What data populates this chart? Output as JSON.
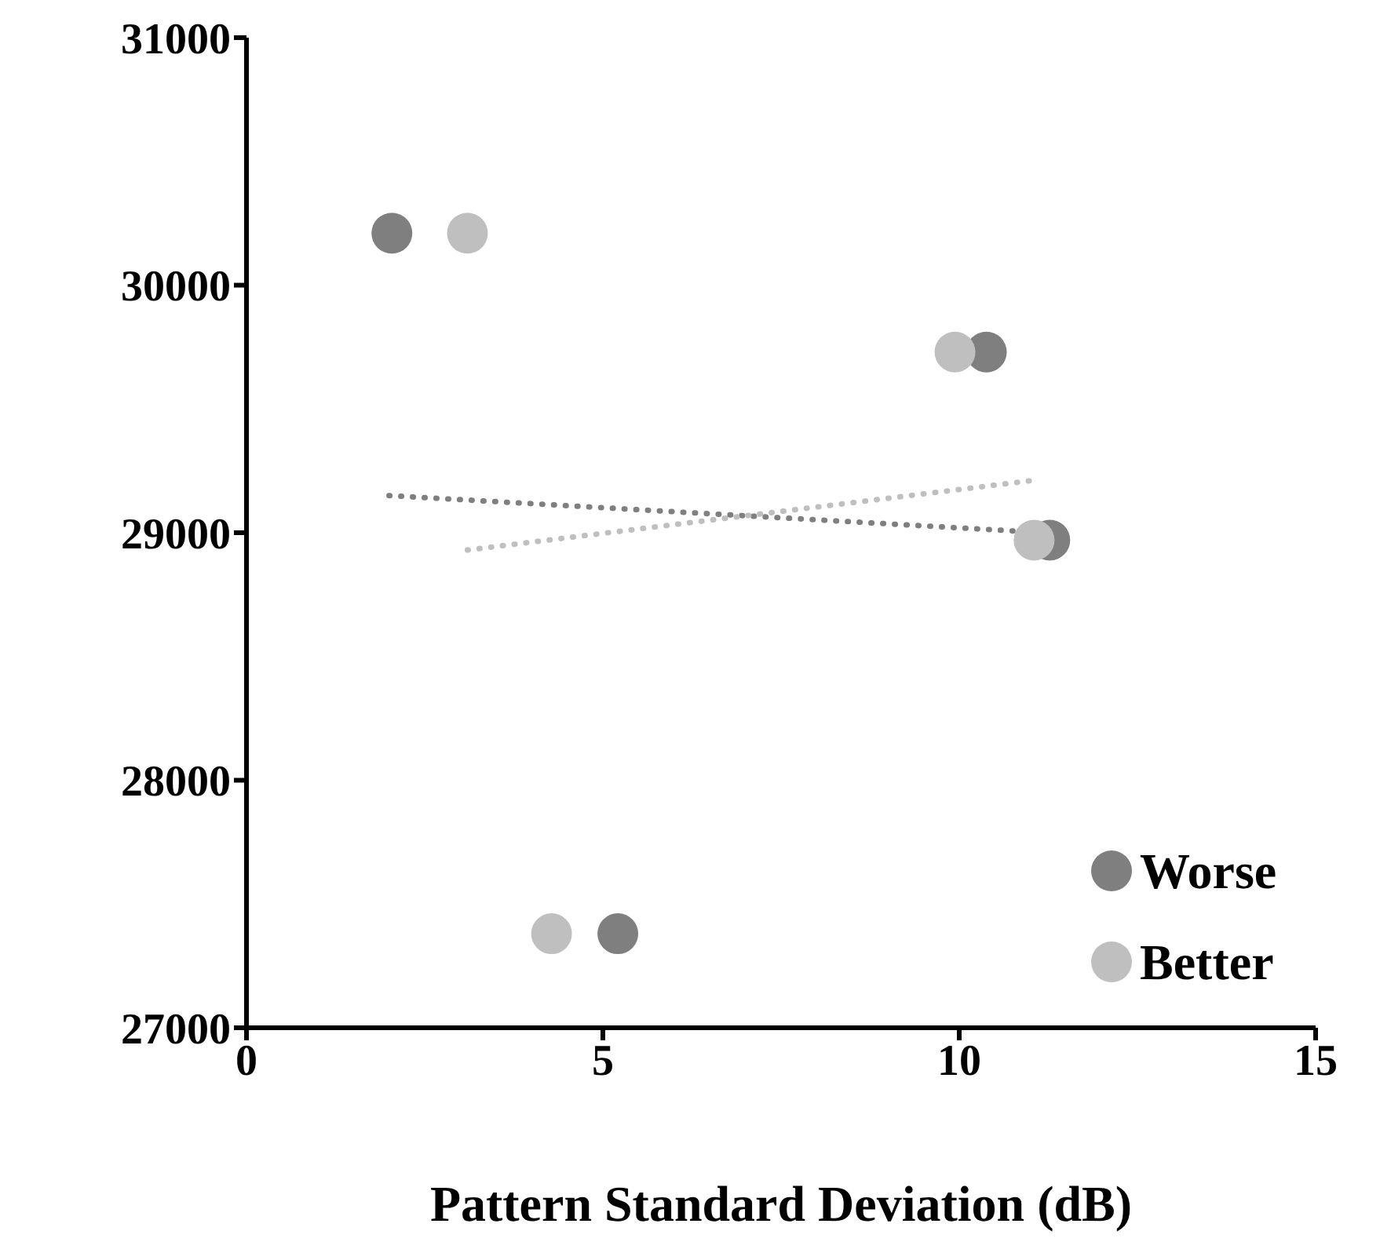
{
  "chart_data": {
    "type": "scatter",
    "xlabel": "Pattern Standard Deviation (dB)",
    "xlim": [
      0,
      15
    ],
    "xticks": [
      0,
      5,
      10,
      15
    ],
    "ylim": [
      27000,
      31000
    ],
    "yticks": [
      27000,
      28000,
      29000,
      30000,
      31000
    ],
    "grid": false,
    "legend": "bottom right",
    "marker": "circle",
    "series": [
      {
        "name": "Worse",
        "color": "#7f7f7f",
        "x": [
          2.04,
          10.38,
          11.27,
          5.21
        ],
        "values": [
          30210,
          29730,
          28970,
          27380
        ]
      },
      {
        "name": "Better",
        "color": "#bfbfbf",
        "x": [
          3.1,
          9.94,
          11.05,
          4.28
        ],
        "values": [
          30210,
          29730,
          28970,
          27380
        ]
      },
      {
        "type": "line",
        "marker": "none",
        "color": "#7f7f7f",
        "line_style": "dotted",
        "x": [
          2.0,
          11.2
        ],
        "values": [
          29150,
          29000
        ]
      },
      {
        "type": "line",
        "marker": "none",
        "color": "#bfbfbf",
        "line_style": "dotted",
        "x": [
          3.1,
          11.0
        ],
        "values": [
          28930,
          29210
        ]
      }
    ]
  }
}
